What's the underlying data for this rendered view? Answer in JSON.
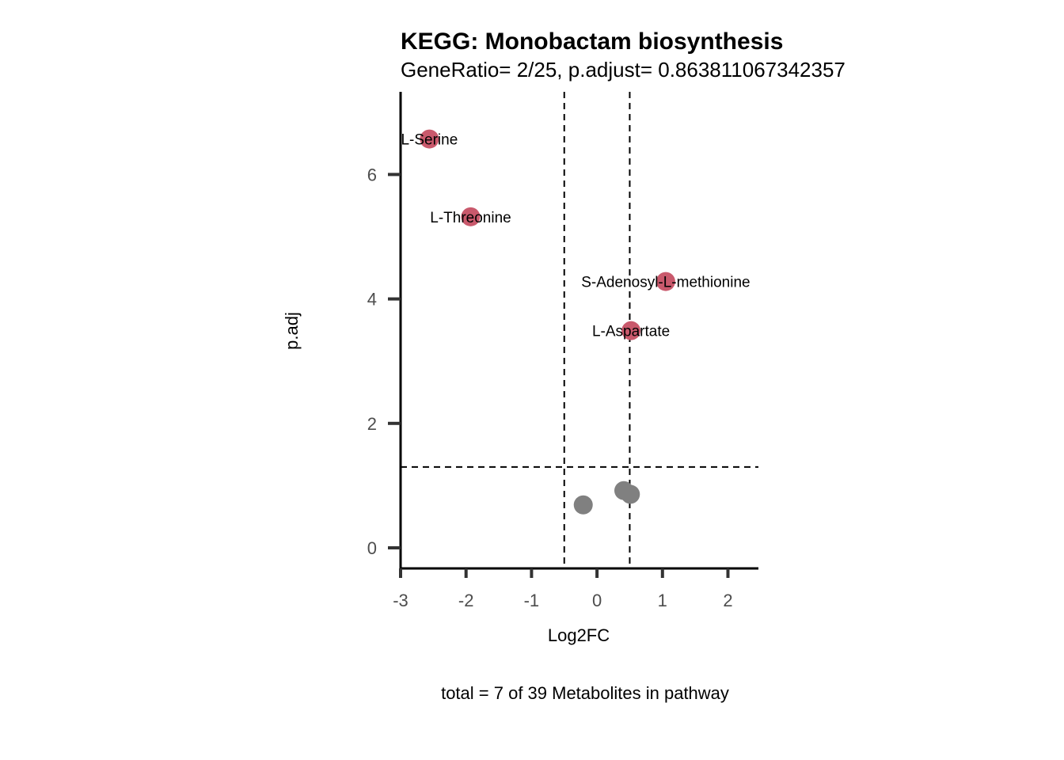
{
  "chart_data": {
    "type": "scatter",
    "title": "KEGG: Monobactam biosynthesis",
    "subtitle": "GeneRatio= 2/25, p.adjust= 0.863811067342357",
    "xlabel": "Log2FC",
    "ylabel": "p.adj",
    "caption": "total = 7 of 39 Metabolites in pathway",
    "xlim": [
      -3,
      2.5
    ],
    "ylim": [
      -0.33,
      7.3
    ],
    "xticks": [
      -3,
      -2,
      -1,
      0,
      1,
      2
    ],
    "xtick_labels": [
      "-3",
      "-2",
      "-1",
      "0",
      "1",
      "2"
    ],
    "yticks": [
      0,
      2,
      4,
      6
    ],
    "ytick_labels": [
      "0",
      "2",
      "4",
      "6"
    ],
    "grid": false,
    "legend": "none",
    "colors": {
      "significant": "#c9596c",
      "not_significant": "#808080"
    },
    "thresholds": {
      "vlines": [
        -0.5,
        0.5
      ],
      "hline": 1.3
    },
    "points": [
      {
        "x": -2.56,
        "y": 6.57,
        "label": "L-Serine",
        "significant": true
      },
      {
        "x": -1.93,
        "y": 5.32,
        "label": "L-Threonine",
        "significant": true
      },
      {
        "x": 1.05,
        "y": 4.28,
        "label": "S-Adenosyl-L-methionine",
        "significant": true
      },
      {
        "x": 0.52,
        "y": 3.49,
        "label": "L-Aspartate",
        "significant": true
      },
      {
        "x": -0.21,
        "y": 0.69,
        "label": "",
        "significant": false
      },
      {
        "x": 0.41,
        "y": 0.92,
        "label": "",
        "significant": false
      },
      {
        "x": 0.51,
        "y": 0.86,
        "label": "",
        "significant": false
      }
    ]
  }
}
